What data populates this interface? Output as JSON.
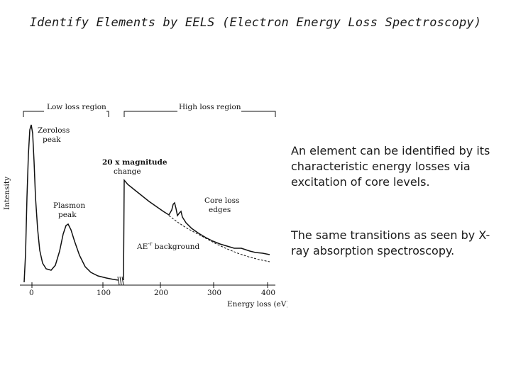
{
  "title": "Identify Elements by EELS (Electron Energy Loss Spectroscopy)",
  "figure": {
    "regions": {
      "low": "Low loss region",
      "high": "High loss region"
    },
    "y_label": "Intensity",
    "x_label": "Energy loss (eV)",
    "x_ticks": [
      "0",
      "100",
      "200",
      "300",
      "400"
    ],
    "annotations": {
      "zeroloss_1": "Zeroloss",
      "zeroloss_2": "peak",
      "plasmon_1": "Plasmon",
      "plasmon_2": "peak",
      "magnitude_1": "20 x magnitude",
      "magnitude_2": "change",
      "coreloss_1": "Core loss",
      "coreloss_2": "edges",
      "background_prefix": "AE",
      "background_exp": "-r",
      "background_suffix": " background"
    }
  },
  "text": {
    "paragraph1": "An element can be identified by its characteristic energy losses via excitation of core levels.",
    "paragraph2": "The same transitions as seen by X-ray absorption spectroscopy."
  }
}
